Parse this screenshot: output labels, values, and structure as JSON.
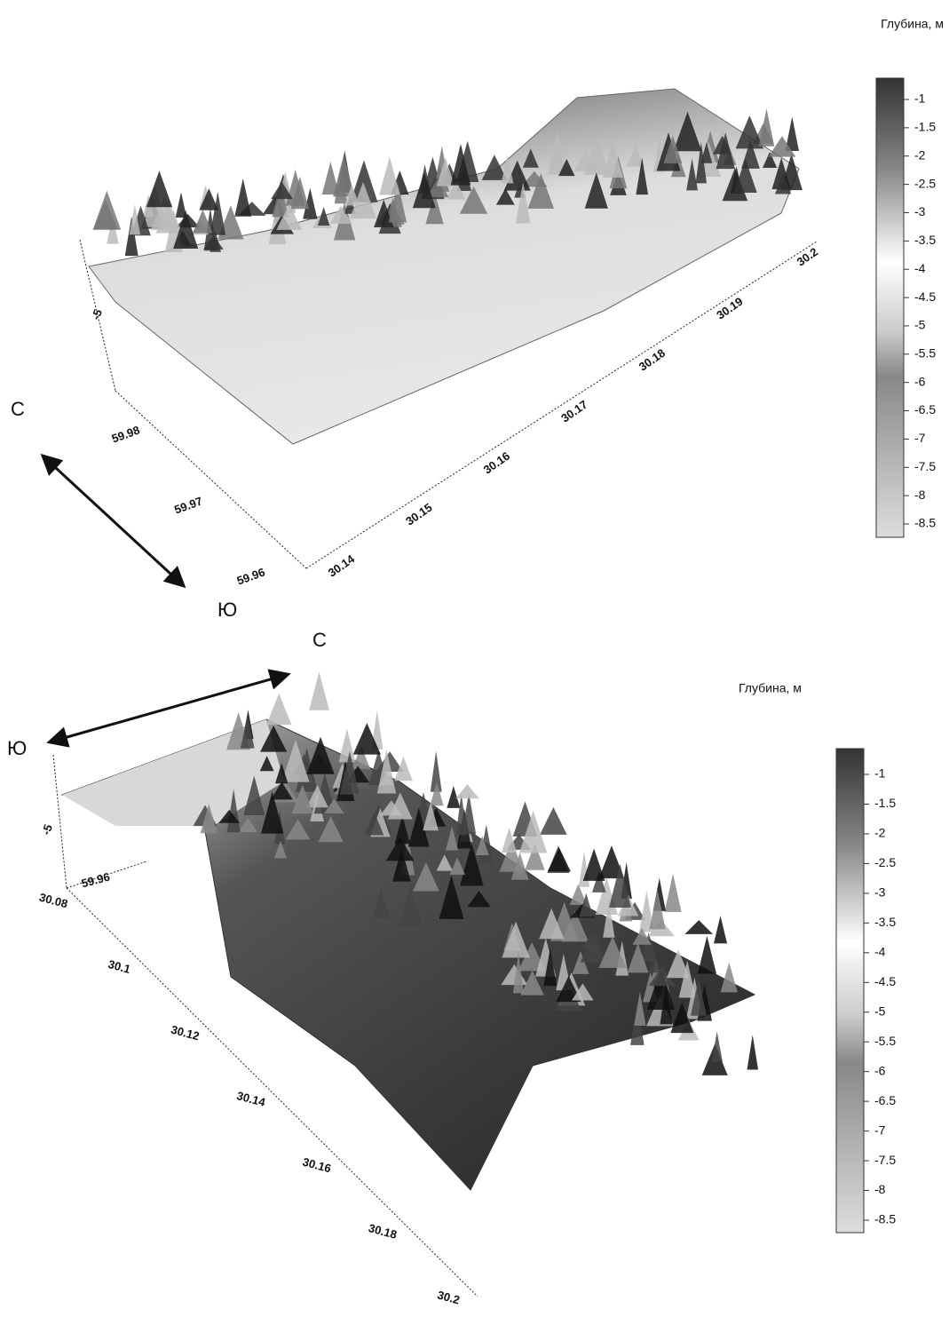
{
  "panels": [
    {
      "legend_title": "Глубина, м",
      "colorbar_labels": [
        "-1",
        "-1.5",
        "-2",
        "-2.5",
        "-3",
        "-3.5",
        "-4",
        "-4.5",
        "-5",
        "-5.5",
        "-6",
        "-6.5",
        "-7",
        "-7.5",
        "-8",
        "-8.5"
      ],
      "lon_labels": [
        "30.14",
        "30.15",
        "30.16",
        "30.17",
        "30.18",
        "30.19",
        "30.2"
      ],
      "lat_labels": [
        "59.98",
        "59.97",
        "59.96"
      ],
      "z_label": "-5",
      "north": "С",
      "south": "Ю"
    },
    {
      "legend_title": "Глубина, м",
      "colorbar_labels": [
        "-1",
        "-1.5",
        "-2",
        "-2.5",
        "-3",
        "-3.5",
        "-4",
        "-4.5",
        "-5",
        "-5.5",
        "-6",
        "-6.5",
        "-7",
        "-7.5",
        "-8",
        "-8.5"
      ],
      "lon_labels": [
        "30.08",
        "30.1",
        "30.12",
        "30.14",
        "30.16",
        "30.18",
        "30.2"
      ],
      "lat_labels": [
        "59.96"
      ],
      "z_label": "-5",
      "north": "С",
      "south": "Ю"
    }
  ]
}
